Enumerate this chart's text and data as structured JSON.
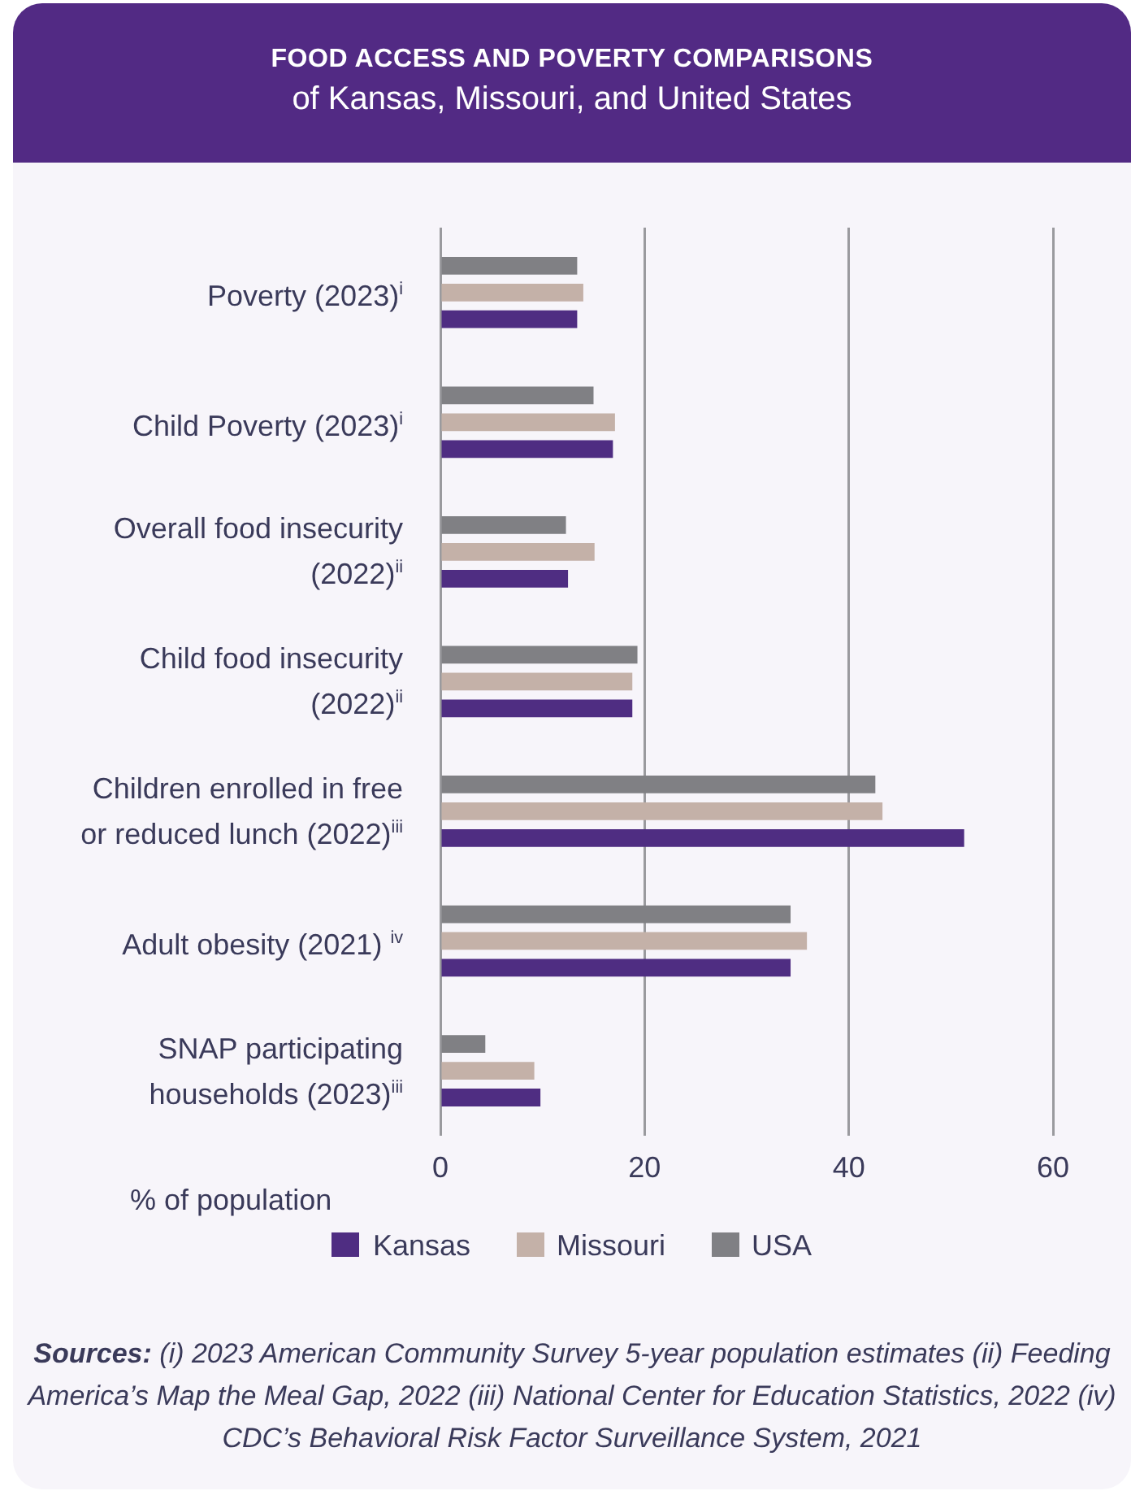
{
  "chart_data": {
    "type": "bar",
    "orientation": "horizontal",
    "title": "FOOD ACCESS AND POVERTY COMPARISONS",
    "subtitle": "of Kansas, Missouri, and United States",
    "categories": [
      "Poverty (2023)$^{i}$",
      "Child Poverty (2023)$^{i}$",
      "Overall food insecurity (2022)$^{ii}$",
      "Child food insecurity (2022)$^{ii}$",
      "Children enrolled in free or reduced lunch (2022)$^{iii}$",
      "Adult obesity (2021) $^{iv}$",
      "SNAP participating households (2023)$^{iii}$"
    ],
    "series": [
      {
        "name": "Kansas",
        "color": "#4f2d82",
        "values": [
          13.4,
          16.9,
          12.5,
          18.8,
          51.3,
          34.3,
          9.8
        ]
      },
      {
        "name": "Missouri",
        "color": "#c4b1a8",
        "values": [
          14.0,
          17.1,
          15.1,
          18.8,
          43.3,
          35.9,
          9.2
        ]
      },
      {
        "name": "USA",
        "color": "#808084",
        "values": [
          13.4,
          15.0,
          12.3,
          19.3,
          42.6,
          34.3,
          4.4
        ]
      }
    ],
    "xlabel": "% of population",
    "xlim": [
      0,
      60
    ],
    "xticks": [
      0,
      20,
      40,
      60
    ],
    "grid": "x",
    "legend": "bottom",
    "annotations": [
      "Sources: (i) 2023 American Community Survey 5-year population estimates (ii) Feeding America’s Map the Meal Gap, 2022 (iii) National Center for Education Statistics, 2022 (iv) CDC’s Behavioral Risk Factor Surveillance System, 2021"
    ]
  }
}
